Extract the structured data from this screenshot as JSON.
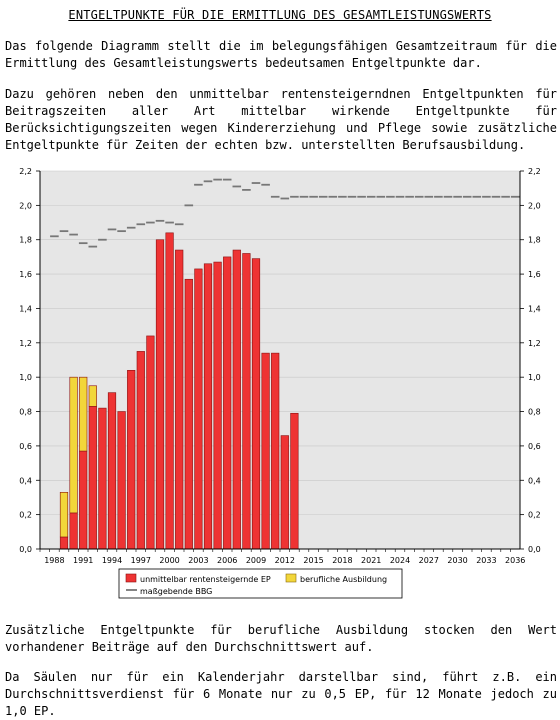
{
  "document": {
    "title": "ENTGELTPUNKTE FÜR DIE ERMITTLUNG DES GESAMTLEISTUNGSWERTS",
    "paragraphs": [
      "Das folgende Diagramm stellt die im belegungsfähigen Gesamtzeitraum für die Ermittlung des Gesamtleistungswerts bedeutsamen Entgeltpunkte dar.",
      "Dazu gehören neben den unmittelbar rentensteigerndnen Entgeltpunkten für Beitragszeiten aller Art mittelbar wirkende Entgeltpunkte für Berücksichtigungszeiten wegen Kindererziehung und Pflege sowie zusätzliche Entgeltpunkte für Zeiten der echten bzw. unterstellten Berufsausbildung.",
      "Zusätzliche Entgeltpunkte für berufliche Ausbildung stocken den Wert vorhandener Beiträge auf den Durchschnittswert auf.",
      "Da Säulen nur für ein Kalenderjahr darstellbar sind, führt z.B. ein Durchschnittsverdienst für 6 Monate nur zu 0,5 EP, für 12 Monate jedoch zu 1,0 EP."
    ]
  },
  "chart_data": {
    "type": "bar",
    "stacked": true,
    "x": [
      1987,
      1988,
      1989,
      1990,
      1991,
      1992,
      1993,
      1994,
      1995,
      1996,
      1997,
      1998,
      1999,
      2000,
      2001,
      2002,
      2003,
      2004,
      2005,
      2006,
      2007,
      2008,
      2009,
      2010,
      2011,
      2012,
      2013,
      2014,
      2015,
      2016,
      2017,
      2018,
      2019,
      2020,
      2021,
      2022,
      2023,
      2024,
      2025,
      2026,
      2027,
      2028,
      2029,
      2030,
      2031,
      2032,
      2033,
      2034,
      2035,
      2036
    ],
    "x_tick_labels": [
      "1988",
      "1991",
      "1994",
      "1997",
      "2000",
      "2003",
      "2006",
      "2009",
      "2012",
      "2015",
      "2018",
      "2021",
      "2024",
      "2027",
      "2030",
      "2033",
      "2036"
    ],
    "x_tick_years": [
      1988,
      1991,
      1994,
      1997,
      2000,
      2003,
      2006,
      2009,
      2012,
      2015,
      2018,
      2021,
      2024,
      2027,
      2030,
      2033,
      2036
    ],
    "y_tick_labels": [
      "0,0",
      "0,2",
      "0,4",
      "0,6",
      "0,8",
      "1,0",
      "1,2",
      "1,4",
      "1,6",
      "1,8",
      "2,0",
      "2,2"
    ],
    "ylim": [
      0,
      2.2
    ],
    "grid": true,
    "legend_position": "bottom",
    "series": [
      {
        "name": "unmittelbar rentensteigernde EP",
        "mark": "bar",
        "color": "#ee3333",
        "points": [
          [
            1989,
            0.07
          ],
          [
            1990,
            0.21
          ],
          [
            1991,
            0.57
          ],
          [
            1992,
            0.83
          ],
          [
            1993,
            0.82
          ],
          [
            1994,
            0.91
          ],
          [
            1995,
            0.8
          ],
          [
            1996,
            1.04
          ],
          [
            1997,
            1.15
          ],
          [
            1998,
            1.24
          ],
          [
            1999,
            1.8
          ],
          [
            2000,
            1.84
          ],
          [
            2001,
            1.74
          ],
          [
            2002,
            1.57
          ],
          [
            2003,
            1.63
          ],
          [
            2004,
            1.66
          ],
          [
            2005,
            1.67
          ],
          [
            2006,
            1.7
          ],
          [
            2007,
            1.74
          ],
          [
            2008,
            1.72
          ],
          [
            2009,
            1.69
          ],
          [
            2010,
            1.14
          ],
          [
            2011,
            1.14
          ],
          [
            2012,
            0.66
          ],
          [
            2013,
            0.79
          ]
        ]
      },
      {
        "name": "berufliche Ausbildung",
        "mark": "bar",
        "color": "#f2d63a",
        "points": [
          [
            1989,
            0.26
          ],
          [
            1990,
            0.79
          ],
          [
            1991,
            0.43
          ],
          [
            1992,
            0.12
          ]
        ]
      },
      {
        "name": "maßgebende BBG",
        "mark": "step",
        "color": "#777777",
        "points": [
          [
            1988,
            1.82
          ],
          [
            1989,
            1.85
          ],
          [
            1990,
            1.83
          ],
          [
            1991,
            1.78
          ],
          [
            1992,
            1.76
          ],
          [
            1993,
            1.8
          ],
          [
            1994,
            1.86
          ],
          [
            1995,
            1.85
          ],
          [
            1996,
            1.87
          ],
          [
            1997,
            1.89
          ],
          [
            1998,
            1.9
          ],
          [
            1999,
            1.91
          ],
          [
            2000,
            1.9
          ],
          [
            2001,
            1.89
          ],
          [
            2002,
            2.0
          ],
          [
            2003,
            2.12
          ],
          [
            2004,
            2.14
          ],
          [
            2005,
            2.15
          ],
          [
            2006,
            2.15
          ],
          [
            2007,
            2.11
          ],
          [
            2008,
            2.09
          ],
          [
            2009,
            2.13
          ],
          [
            2010,
            2.12
          ],
          [
            2011,
            2.05
          ],
          [
            2012,
            2.04
          ],
          [
            2013,
            2.05
          ],
          [
            2014,
            2.05
          ],
          [
            2015,
            2.05
          ],
          [
            2016,
            2.05
          ],
          [
            2017,
            2.05
          ],
          [
            2018,
            2.05
          ],
          [
            2019,
            2.05
          ],
          [
            2020,
            2.05
          ],
          [
            2021,
            2.05
          ],
          [
            2022,
            2.05
          ],
          [
            2023,
            2.05
          ],
          [
            2024,
            2.05
          ],
          [
            2025,
            2.05
          ],
          [
            2026,
            2.05
          ],
          [
            2027,
            2.05
          ],
          [
            2028,
            2.05
          ],
          [
            2029,
            2.05
          ],
          [
            2030,
            2.05
          ],
          [
            2031,
            2.05
          ],
          [
            2032,
            2.05
          ],
          [
            2033,
            2.05
          ],
          [
            2034,
            2.05
          ],
          [
            2035,
            2.05
          ],
          [
            2036,
            2.05
          ]
        ]
      }
    ]
  }
}
